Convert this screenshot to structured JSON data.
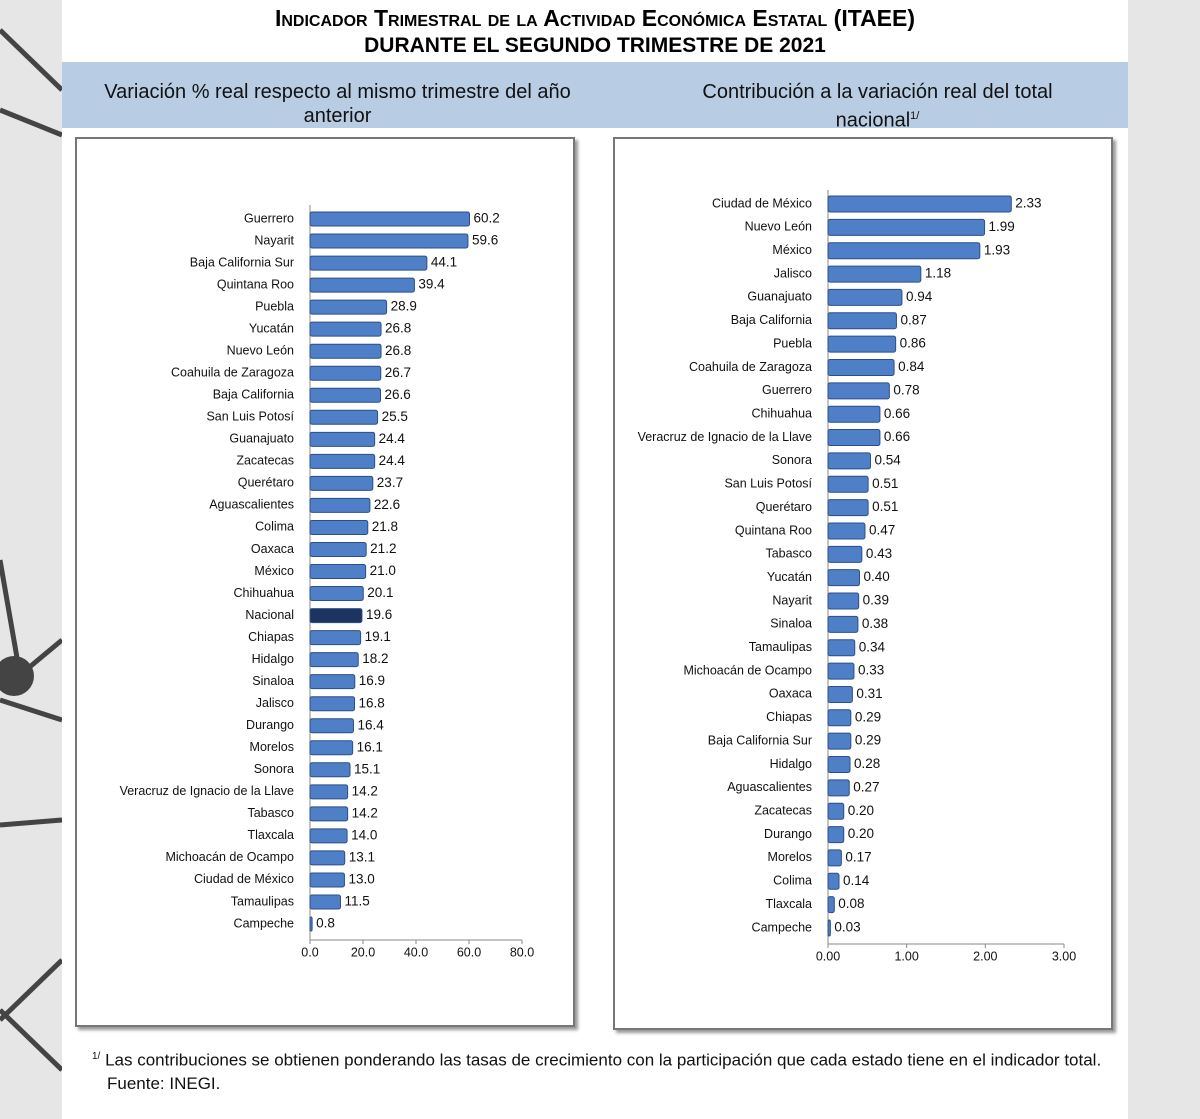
{
  "header": {
    "title": "Indicador Trimestral de la Actividad Económica Estatal (ITAEE)",
    "subtitle": "DURANTE EL SEGUNDO TRIMESTRE DE 2021"
  },
  "chart_data": [
    {
      "type": "bar",
      "orientation": "horizontal",
      "title": "Variación % real respecto al mismo trimestre del año anterior",
      "categories": [
        "Guerrero",
        "Nayarit",
        "Baja California Sur",
        "Quintana Roo",
        "Puebla",
        "Yucatán",
        "Nuevo León",
        "Coahuila de Zaragoza",
        "Baja California",
        "San Luis Potosí",
        "Guanajuato",
        "Zacatecas",
        "Querétaro",
        "Aguascalientes",
        "Colima",
        "Oaxaca",
        "México",
        "Chihuahua",
        "Nacional",
        "Chiapas",
        "Hidalgo",
        "Sinaloa",
        "Jalisco",
        "Durango",
        "Morelos",
        "Sonora",
        "Veracruz de Ignacio de la Llave",
        "Tabasco",
        "Tlaxcala",
        "Michoacán de Ocampo",
        "Ciudad de México",
        "Tamaulipas",
        "Campeche"
      ],
      "values": [
        60.2,
        59.6,
        44.1,
        39.4,
        28.9,
        26.8,
        26.8,
        26.7,
        26.6,
        25.5,
        24.4,
        24.4,
        23.7,
        22.6,
        21.8,
        21.2,
        21.0,
        20.1,
        19.6,
        19.1,
        18.2,
        16.9,
        16.8,
        16.4,
        16.1,
        15.1,
        14.2,
        14.2,
        14.0,
        13.1,
        13.0,
        11.5,
        0.8
      ],
      "value_labels": [
        "60.2",
        "59.6",
        "44.1",
        "39.4",
        "28.9",
        "26.8",
        "26.8",
        "26.7",
        "26.6",
        "25.5",
        "24.4",
        "24.4",
        "23.7",
        "22.6",
        "21.8",
        "21.2",
        "21.0",
        "20.1",
        "19.6",
        "19.1",
        "18.2",
        "16.9",
        "16.8",
        "16.4",
        "16.1",
        "15.1",
        "14.2",
        "14.2",
        "14.0",
        "13.1",
        "13.0",
        "11.5",
        "0.8"
      ],
      "colors": [
        "#4f7fc6",
        "#4f7fc6",
        "#4f7fc6",
        "#4f7fc6",
        "#4f7fc6",
        "#4f7fc6",
        "#4f7fc6",
        "#4f7fc6",
        "#4f7fc6",
        "#4f7fc6",
        "#4f7fc6",
        "#4f7fc6",
        "#4f7fc6",
        "#4f7fc6",
        "#4f7fc6",
        "#4f7fc6",
        "#4f7fc6",
        "#4f7fc6",
        "#1c3560",
        "#4f7fc6",
        "#4f7fc6",
        "#4f7fc6",
        "#4f7fc6",
        "#4f7fc6",
        "#4f7fc6",
        "#4f7fc6",
        "#4f7fc6",
        "#4f7fc6",
        "#4f7fc6",
        "#4f7fc6",
        "#4f7fc6",
        "#4f7fc6",
        "#4f7fc6"
      ],
      "xlim": [
        0,
        80
      ],
      "xticks": [
        {
          "value": 0,
          "label": "0.0"
        },
        {
          "value": 20,
          "label": "20.0"
        },
        {
          "value": 40,
          "label": "40.0"
        },
        {
          "value": 60,
          "label": "60.0"
        },
        {
          "value": 80,
          "label": "80.0"
        }
      ]
    },
    {
      "type": "bar",
      "orientation": "horizontal",
      "title": "Contribución a la variación real del total nacional",
      "title_note": "1/",
      "categories": [
        "Ciudad de México",
        "Nuevo León",
        "México",
        "Jalisco",
        "Guanajuato",
        "Baja California",
        "Puebla",
        "Coahuila de Zaragoza",
        "Guerrero",
        "Chihuahua",
        "Veracruz de Ignacio de la Llave",
        "Sonora",
        "San Luis Potosí",
        "Querétaro",
        "Quintana Roo",
        "Tabasco",
        "Yucatán",
        "Nayarit",
        "Sinaloa",
        "Tamaulipas",
        "Michoacán de Ocampo",
        "Oaxaca",
        "Chiapas",
        "Baja California Sur",
        "Hidalgo",
        "Aguascalientes",
        "Zacatecas",
        "Durango",
        "Morelos",
        "Colima",
        "Tlaxcala",
        "Campeche"
      ],
      "values": [
        2.33,
        1.99,
        1.93,
        1.18,
        0.94,
        0.87,
        0.86,
        0.84,
        0.78,
        0.66,
        0.66,
        0.54,
        0.51,
        0.51,
        0.47,
        0.43,
        0.4,
        0.39,
        0.38,
        0.34,
        0.33,
        0.31,
        0.29,
        0.29,
        0.28,
        0.27,
        0.2,
        0.2,
        0.17,
        0.14,
        0.08,
        0.03
      ],
      "value_labels": [
        "2.33",
        "1.99",
        "1.93",
        "1.18",
        "0.94",
        "0.87",
        "0.86",
        "0.84",
        "0.78",
        "0.66",
        "0.66",
        "0.54",
        "0.51",
        "0.51",
        "0.47",
        "0.43",
        "0.40",
        "0.39",
        "0.38",
        "0.34",
        "0.33",
        "0.31",
        "0.29",
        "0.29",
        "0.28",
        "0.27",
        "0.20",
        "0.20",
        "0.17",
        "0.14",
        "0.08",
        "0.03"
      ],
      "color": "#4f7fc6",
      "xlim": [
        0,
        3
      ],
      "xticks": [
        {
          "value": 0,
          "label": "0.00"
        },
        {
          "value": 1,
          "label": "1.00"
        },
        {
          "value": 2,
          "label": "2.00"
        },
        {
          "value": 3,
          "label": "3.00"
        }
      ]
    }
  ],
  "footnote": {
    "marker": "1/",
    "text": "Las contribuciones se obtienen ponderando las tasas de crecimiento con la participación que cada estado tiene en el indicador total.",
    "source": "Fuente: INEGI."
  }
}
